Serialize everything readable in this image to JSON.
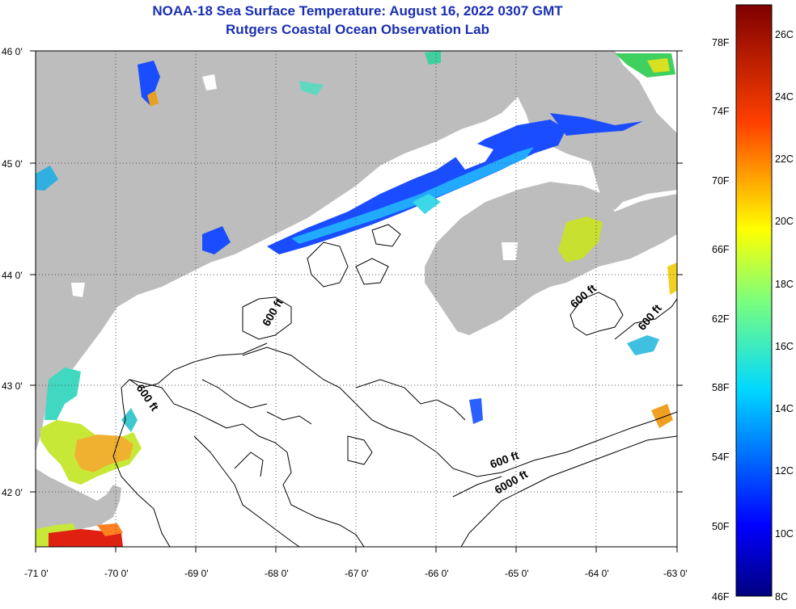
{
  "title": {
    "line1": "NOAA-18 Sea Surface Temperature:  August 16, 2022 0307 GMT",
    "line2": "Rutgers Coastal Ocean Observation Lab"
  },
  "map": {
    "lon_ticks": [
      "-71 0'",
      "-70 0'",
      "-69 0'",
      "-68 0'",
      "-67 0'",
      "-66 0'",
      "-65 0'",
      "-64 0'",
      "-63 0'"
    ],
    "lat_ticks": [
      "46 0'",
      "45 0'",
      "44 0'",
      "43 0'",
      "42 0'"
    ],
    "contour_labels": [
      "600 ft",
      "600 ft",
      "600 ft",
      "600 ft",
      "600 ft",
      "6000 ft"
    ],
    "land_color": "#bdbdbd",
    "ocean_no_data_color": "#ffffff"
  },
  "colorbar": {
    "fahrenheit": [
      "78F",
      "74F",
      "70F",
      "66F",
      "62F",
      "58F",
      "54F",
      "50F",
      "46F"
    ],
    "celsius": [
      "26C",
      "24C",
      "22C",
      "20C",
      "18C",
      "16C",
      "14C",
      "12C",
      "10C",
      "8C"
    ]
  }
}
